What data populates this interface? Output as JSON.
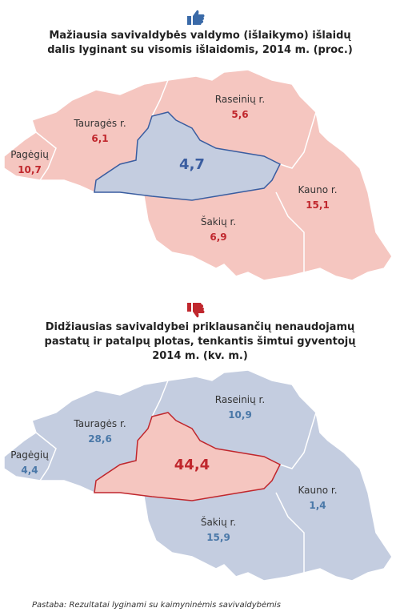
{
  "maps": [
    {
      "title": [
        "Mažiausia savivaldybės valdymo (išlaikymo) išlaidų",
        "dalis lyginant su visomis išlaidomis, 2014 m. (proc.)"
      ],
      "center_value": "4,7",
      "regions": [
        {
          "name": "Pagėgių",
          "value": "10,7"
        },
        {
          "name": "Tauragės r.",
          "value": "6,1"
        },
        {
          "name": "Raseinių r.",
          "value": "5,6"
        },
        {
          "name": "Kauno r.",
          "value": "15,1"
        },
        {
          "name": "Šakių r.",
          "value": "6,9"
        }
      ]
    },
    {
      "title": [
        "Didžiausias savivaldybei priklausančių nenaudojamų",
        "pastatų ir patalpų plotas, tenkantis šimtui gyventojų",
        "2014 m. (kv. m.)"
      ],
      "center_value": "44,4",
      "regions": [
        {
          "name": "Pagėgių",
          "value": "4,4"
        },
        {
          "name": "Tauragės r.",
          "value": "28,6"
        },
        {
          "name": "Raseinių r.",
          "value": "10,9"
        },
        {
          "name": "Kauno r.",
          "value": "1,4"
        },
        {
          "name": "Šakių r.",
          "value": "15,9"
        }
      ]
    }
  ],
  "note": "Pastaba: Rezultatai lyginami su kaimyninėmis savivaldybėmis"
}
